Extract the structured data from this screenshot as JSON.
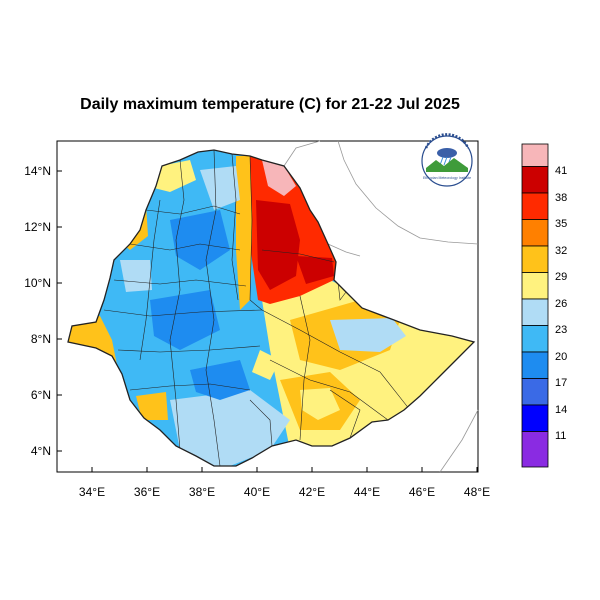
{
  "title": "Daily maximum temperature (C) for 21-22 Jul 2025",
  "map": {
    "lat_ticks": [
      "14°N",
      "12°N",
      "10°N",
      "8°N",
      "6°N",
      "4°N"
    ],
    "lon_ticks": [
      "34°E",
      "36°E",
      "38°E",
      "40°E",
      "42°E",
      "44°E",
      "46°E",
      "48°E"
    ],
    "extent": {
      "lon": [
        32.8,
        48.2
      ],
      "lat": [
        3.2,
        15.0
      ]
    }
  },
  "colorbar": {
    "labels": [
      "41",
      "38",
      "35",
      "32",
      "29",
      "26",
      "23",
      "20",
      "17",
      "14",
      "11"
    ],
    "colors": [
      "#f7b6b9",
      "#cc0000",
      "#ff2a00",
      "#ff8000",
      "#ffc21a",
      "#fff27f",
      "#b0dcf5",
      "#3fb9f5",
      "#1e8cf0",
      "#3a6ae6",
      "#0000ff",
      "#8a2be2"
    ]
  },
  "logo": {
    "icon": "agency-logo",
    "caption": "Ethiopian Meteorology Institute"
  }
}
